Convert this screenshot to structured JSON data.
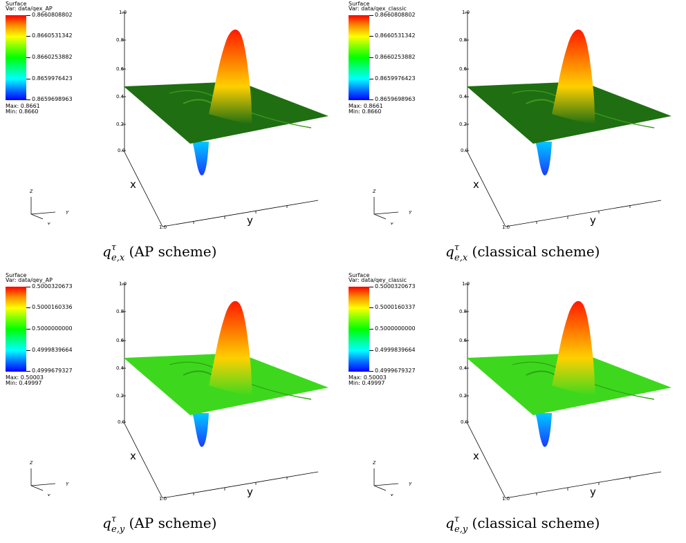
{
  "panels": [
    {
      "legend": {
        "title": "Surface",
        "variable": "Var: data/qex_AP",
        "ticks": [
          "0.8660808802",
          "0.8660531342",
          "0.8660253882",
          "0.8659976423",
          "0.8659698963"
        ],
        "max": "Max: 0.8661",
        "min": "Min: 0.8660"
      },
      "axis": {
        "z_ticks": [
          "1.0",
          "0.8",
          "0.6",
          "0.4",
          "0.2",
          "0.0"
        ],
        "x_label": "x",
        "y_label": "y",
        "corner_tick": "1.0"
      },
      "triad": {
        "z": "z",
        "y": "Y",
        "x": "X"
      },
      "caption": {
        "sym": "q",
        "sup": "τ",
        "sub": "e,x",
        "text": " (AP scheme)"
      }
    },
    {
      "legend": {
        "title": "Surface",
        "variable": "Var: data/qex_classic",
        "ticks": [
          "0.8660808802",
          "0.8660531342",
          "0.8660253882",
          "0.8659976423",
          "0.8659698963"
        ],
        "max": "Max: 0.8661",
        "min": "Min: 0.8660"
      },
      "axis": {
        "z_ticks": [
          "1.0",
          "0.8",
          "0.6",
          "0.4",
          "0.2",
          "0.0"
        ],
        "x_label": "x",
        "y_label": "y",
        "corner_tick": "1.0"
      },
      "triad": {
        "z": "z",
        "y": "Y",
        "x": "X"
      },
      "caption": {
        "sym": "q",
        "sup": "τ",
        "sub": "e,x",
        "text": " (classical scheme)"
      }
    },
    {
      "legend": {
        "title": "Surface",
        "variable": "Var: data/qey_AP",
        "ticks": [
          "0.5000320673",
          "0.5000160336",
          "0.5000000000",
          "0.4999839664",
          "0.4999679327"
        ],
        "max": "Max: 0.50003",
        "min": "Min: 0.49997"
      },
      "axis": {
        "z_ticks": [
          "1.0",
          "0.8",
          "0.6",
          "0.4",
          "0.2",
          "0.0"
        ],
        "x_label": "x",
        "y_label": "y",
        "corner_tick": "1.0"
      },
      "triad": {
        "z": "z",
        "y": "Y",
        "x": "X"
      },
      "caption": {
        "sym": "q",
        "sup": "τ",
        "sub": "e,y",
        "text": " (AP scheme)"
      }
    },
    {
      "legend": {
        "title": "Surface",
        "variable": "Var: data/qey_classic",
        "ticks": [
          "0.5000320673",
          "0.5000160337",
          "0.5000000000",
          "0.4999839664",
          "0.4999679327"
        ],
        "max": "Max: 0.50003",
        "min": "Min: 0.49997"
      },
      "axis": {
        "z_ticks": [
          "1.0",
          "0.8",
          "0.6",
          "0.4",
          "0.2",
          "0.0"
        ],
        "x_label": "x",
        "y_label": "y",
        "corner_tick": "1.0"
      },
      "triad": {
        "z": "z",
        "y": "Y",
        "x": "X"
      },
      "caption": {
        "sym": "q",
        "sup": "τ",
        "sub": "e,y",
        "text": " (classical scheme)"
      }
    }
  ],
  "colors": {
    "plane_dark": "#1f6e12",
    "plane_bright": "#3dd81d",
    "peak_top": "#ff1a00",
    "peak_mid": "#ffd000",
    "trough": "#1a3cff"
  }
}
